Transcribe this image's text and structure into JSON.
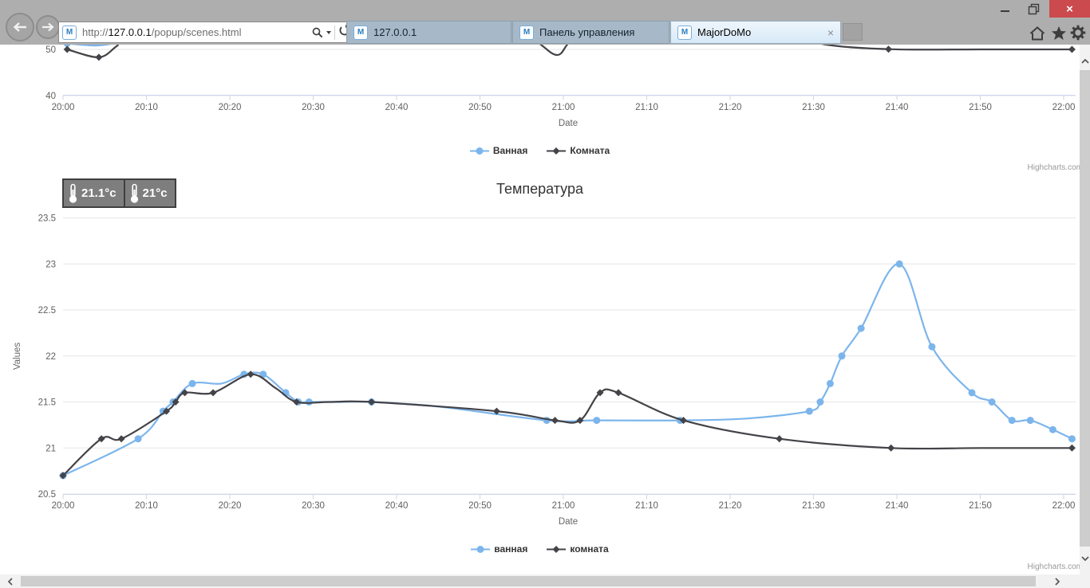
{
  "browser": {
    "window_controls": {
      "close_glyph": "×"
    },
    "address_bar": {
      "scheme": "http://",
      "host": "127.0.0.1",
      "path": "/popup/scenes.html"
    },
    "favicon_letter": "M",
    "tabs": [
      {
        "label": "127.0.0.1",
        "active": false
      },
      {
        "label": "Панель управления",
        "active": false
      },
      {
        "label": "MajorDoMo",
        "active": true,
        "close_glyph": "×"
      }
    ],
    "icons": {
      "back": "back-arrow",
      "forward": "forward-arrow",
      "search": "magnifier",
      "refresh": "reload-arrow",
      "home": "house",
      "favorites": "star",
      "tools": "gear",
      "minimize": "dash",
      "restore": "overlapping-squares",
      "close": "x"
    }
  },
  "widgets": {
    "bathroom_temp": "21.1°c",
    "room_temp": "21°c"
  },
  "page": {
    "credits": "Highcharts.com"
  },
  "colors": {
    "series_blue": "#7cb5ec",
    "series_dark": "#434348",
    "grid": "#e6e6e6",
    "axis_line": "#ccd6eb",
    "tick_text": "#606060"
  },
  "chart_data": [
    {
      "type": "line",
      "title": "",
      "note": "upper chart cropped by viewport top; only region near 40-51 visible",
      "xlabel": "Date",
      "ylabel": "",
      "xlim": [
        "20:00",
        "22:00"
      ],
      "visible_ylim": [
        40,
        51
      ],
      "x_tick_labels": [
        "20:00",
        "20:10",
        "20:20",
        "20:30",
        "20:40",
        "20:50",
        "21:00",
        "21:10",
        "21:20",
        "21:30",
        "21:40",
        "21:50",
        "22:00"
      ],
      "y_ticks": [
        50,
        40
      ],
      "x_unit": "minutes after 20:00",
      "values_estimated": true,
      "series": [
        {
          "name": "Ванная",
          "color": "#7cb5ec",
          "marker": "circle",
          "points": [
            [
              0.5,
              51.3,
              1
            ],
            [
              4,
              50.85,
              0
            ],
            [
              6.6,
              51.6,
              0
            ],
            [
              9,
              53.5,
              0
            ]
          ]
        },
        {
          "name": "Комната",
          "color": "#434348",
          "marker": "diamond",
          "points": [
            [
              0.5,
              50,
              1
            ],
            [
              4.3,
              48.3,
              1
            ],
            [
              6.5,
              50.8,
              0
            ],
            [
              9,
              54,
              0
            ],
            [
              50,
              56,
              0
            ],
            [
              56,
              52.5,
              0
            ],
            [
              59.2,
              48.8,
              0
            ],
            [
              61,
              52,
              0
            ],
            [
              65,
              56,
              0
            ],
            [
              85,
              55.5,
              0
            ],
            [
              88,
              54,
              0
            ],
            [
              91,
              51.2,
              0
            ],
            [
              99,
              50.05,
              1
            ],
            [
              110,
              50,
              0
            ],
            [
              121,
              50,
              1
            ]
          ]
        }
      ]
    },
    {
      "type": "line",
      "title": "Температура",
      "xlabel": "Date",
      "ylabel": "Values",
      "xlim": [
        "20:00",
        "22:00"
      ],
      "ylim": [
        20.5,
        23.5
      ],
      "x_tick_labels": [
        "20:00",
        "20:10",
        "20:20",
        "20:30",
        "20:40",
        "20:50",
        "21:00",
        "21:10",
        "21:20",
        "21:30",
        "21:40",
        "21:50",
        "22:00"
      ],
      "y_ticks": [
        20.5,
        21,
        21.5,
        22,
        22.5,
        23,
        23.5
      ],
      "x_unit": "minutes after 20:00",
      "series": [
        {
          "name": "ванная",
          "color": "#7cb5ec",
          "marker": "circle",
          "points": [
            [
              0,
              20.7,
              1
            ],
            [
              9,
              21.1,
              1
            ],
            [
              12,
              21.4,
              1
            ],
            [
              13.2,
              21.5,
              1
            ],
            [
              15.5,
              21.7,
              1
            ],
            [
              19,
              21.7,
              0
            ],
            [
              21.7,
              21.8,
              1
            ],
            [
              24,
              21.8,
              1
            ],
            [
              26.7,
              21.6,
              1
            ],
            [
              28.2,
              21.5,
              1
            ],
            [
              29.5,
              21.5,
              1
            ],
            [
              33,
              21.5,
              0
            ],
            [
              37,
              21.5,
              1
            ],
            [
              45,
              21.45,
              0
            ],
            [
              58,
              21.3,
              1
            ],
            [
              64,
              21.3,
              1
            ],
            [
              74,
              21.3,
              1
            ],
            [
              82,
              21.32,
              0
            ],
            [
              89.5,
              21.4,
              1
            ],
            [
              90.8,
              21.5,
              1
            ],
            [
              92,
              21.7,
              1
            ],
            [
              93.4,
              22,
              1
            ],
            [
              95.7,
              22.3,
              1
            ],
            [
              100.3,
              23,
              1
            ],
            [
              104.2,
              22.1,
              1
            ],
            [
              109,
              21.6,
              1
            ],
            [
              111.4,
              21.5,
              1
            ],
            [
              113.8,
              21.3,
              1
            ],
            [
              116,
              21.3,
              1
            ],
            [
              118.7,
              21.2,
              1
            ],
            [
              121,
              21.1,
              1
            ]
          ]
        },
        {
          "name": "комната",
          "color": "#434348",
          "marker": "diamond",
          "points": [
            [
              0,
              20.7,
              1
            ],
            [
              4.6,
              21.1,
              1
            ],
            [
              7,
              21.1,
              1
            ],
            [
              12.4,
              21.4,
              1
            ],
            [
              13.5,
              21.5,
              1
            ],
            [
              14.6,
              21.6,
              1
            ],
            [
              18,
              21.6,
              1
            ],
            [
              22.5,
              21.8,
              1
            ],
            [
              25.5,
              21.65,
              0
            ],
            [
              28,
              21.5,
              1
            ],
            [
              32,
              21.5,
              0
            ],
            [
              37,
              21.5,
              1
            ],
            [
              52,
              21.4,
              1
            ],
            [
              59,
              21.3,
              1
            ],
            [
              62,
              21.3,
              1
            ],
            [
              64.4,
              21.6,
              1
            ],
            [
              66.6,
              21.6,
              1
            ],
            [
              74.4,
              21.3,
              1
            ],
            [
              85.9,
              21.1,
              1
            ],
            [
              99.3,
              21,
              1
            ],
            [
              110,
              21,
              0
            ],
            [
              121,
              21,
              1
            ]
          ]
        }
      ]
    }
  ]
}
